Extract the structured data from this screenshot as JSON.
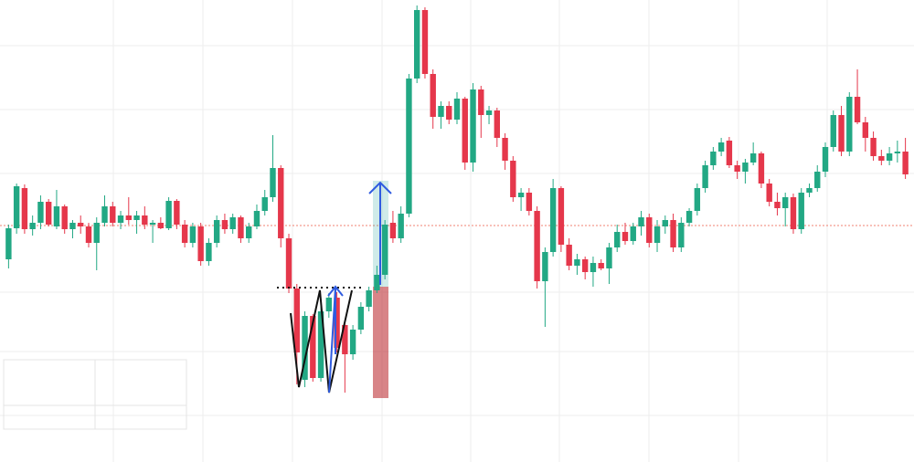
{
  "chart_data": {
    "type": "candlestick",
    "ylim": [
      0,
      506
    ],
    "up_color": "#22a884",
    "down_color": "#e5374b",
    "open": [
      222,
      256,
      300,
      255,
      262,
      285,
      258,
      280,
      255,
      262,
      258,
      240,
      262,
      280,
      262,
      270,
      265,
      270,
      260,
      262,
      256,
      286,
      260,
      240,
      258,
      220,
      240,
      265,
      255,
      268,
      245,
      258,
      275,
      290,
      322,
      245,
      190,
      90,
      160,
      92,
      165,
      180,
      150,
      118,
      145,
      170,
      188,
      205,
      262,
      245,
      272,
      420,
      495,
      425,
      378,
      390,
      375,
      398,
      328,
      408,
      380,
      385,
      355,
      330,
      290,
      295,
      275,
      198,
      230,
      300,
      238,
      215,
      222,
      208,
      218,
      212,
      235,
      252,
      242,
      258,
      268,
      240,
      258,
      265,
      235,
      262,
      275,
      300,
      325,
      340,
      352,
      325,
      318,
      328,
      338,
      305,
      285,
      278,
      290,
      255,
      295,
      300,
      318,
      345,
      380,
      340,
      400,
      372,
      355,
      335,
      330,
      338,
      340
    ],
    "high": [
      260,
      305,
      304,
      270,
      292,
      288,
      298,
      282,
      265,
      270,
      262,
      268,
      292,
      285,
      275,
      290,
      275,
      280,
      265,
      268,
      290,
      288,
      265,
      262,
      262,
      245,
      270,
      272,
      272,
      270,
      262,
      282,
      298,
      358,
      325,
      250,
      195,
      165,
      162,
      172,
      185,
      186,
      155,
      150,
      175,
      192,
      215,
      265,
      275,
      280,
      425,
      500,
      498,
      430,
      395,
      395,
      405,
      400,
      415,
      412,
      390,
      388,
      360,
      335,
      300,
      300,
      280,
      235,
      310,
      302,
      245,
      228,
      225,
      225,
      222,
      240,
      260,
      262,
      262,
      275,
      272,
      265,
      270,
      272,
      268,
      278,
      305,
      330,
      345,
      355,
      356,
      330,
      332,
      350,
      340,
      310,
      295,
      295,
      294,
      300,
      305,
      325,
      350,
      385,
      390,
      405,
      430,
      378,
      362,
      342,
      345,
      352,
      355
    ],
    "low": [
      212,
      250,
      250,
      248,
      255,
      258,
      255,
      250,
      245,
      250,
      235,
      210,
      258,
      258,
      255,
      260,
      250,
      255,
      240,
      255,
      254,
      255,
      235,
      235,
      215,
      215,
      235,
      250,
      250,
      240,
      240,
      255,
      270,
      285,
      235,
      185,
      85,
      82,
      88,
      88,
      158,
      120,
      76,
      112,
      140,
      165,
      185,
      200,
      240,
      240,
      268,
      415,
      420,
      365,
      365,
      370,
      370,
      320,
      318,
      355,
      370,
      345,
      320,
      285,
      275,
      270,
      190,
      148,
      225,
      230,
      210,
      205,
      200,
      192,
      210,
      195,
      230,
      238,
      238,
      248,
      235,
      230,
      250,
      230,
      230,
      258,
      270,
      295,
      320,
      335,
      322,
      310,
      305,
      325,
      300,
      280,
      270,
      258,
      250,
      250,
      290,
      296,
      312,
      340,
      335,
      335,
      370,
      340,
      330,
      325,
      325,
      328,
      310
    ],
    "close": [
      256,
      302,
      255,
      262,
      285,
      260,
      280,
      255,
      262,
      258,
      240,
      262,
      280,
      262,
      270,
      265,
      270,
      260,
      262,
      256,
      286,
      260,
      240,
      258,
      220,
      240,
      265,
      255,
      268,
      245,
      258,
      275,
      290,
      322,
      245,
      190,
      120,
      160,
      92,
      165,
      180,
      125,
      118,
      145,
      170,
      188,
      205,
      260,
      245,
      272,
      420,
      495,
      425,
      378,
      390,
      375,
      398,
      328,
      408,
      380,
      385,
      355,
      330,
      290,
      295,
      275,
      198,
      230,
      300,
      238,
      215,
      222,
      208,
      218,
      212,
      235,
      252,
      242,
      258,
      268,
      240,
      258,
      265,
      235,
      262,
      275,
      300,
      325,
      340,
      350,
      325,
      318,
      328,
      338,
      305,
      285,
      278,
      290,
      255,
      295,
      300,
      318,
      345,
      380,
      340,
      400,
      372,
      355,
      335,
      330,
      338,
      340,
      315
    ]
  }
}
